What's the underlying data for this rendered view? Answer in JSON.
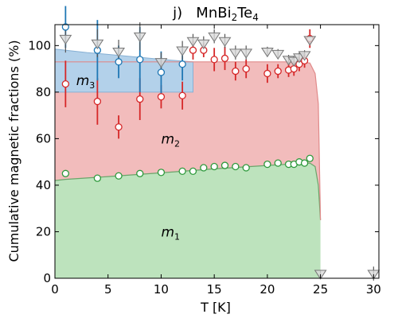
{
  "chart_data": {
    "type": "area",
    "title": {
      "prefix": "j)",
      "formula_parts": [
        "MnBi",
        "2",
        "Te",
        "4"
      ]
    },
    "xlabel": "T [K]",
    "ylabel": "Cumulative magnetic fractions (%)",
    "xlim": [
      0,
      30.5
    ],
    "ylim": [
      0,
      109
    ],
    "xticks": [
      0,
      5,
      10,
      15,
      20,
      25,
      30
    ],
    "yticks": [
      0,
      20,
      40,
      60,
      80,
      100
    ],
    "grid": false,
    "colors": {
      "m1_fill": "#bde3bd",
      "m1_edge": "#6aa56a",
      "m2_fill": "#f2bcbc",
      "m2_edge": "#e08a8a",
      "m3_fill": "#b3d1ea",
      "m3_edge": "#86b0d4",
      "m1_marker": "#2e9a3c",
      "m2_marker": "#d62728",
      "m3_marker": "#1f77b4",
      "total_marker": "#999999"
    },
    "region_labels": [
      {
        "base": "m",
        "sub": "1",
        "x": 10,
        "y": 20
      },
      {
        "base": "m",
        "sub": "2",
        "x": 10,
        "y": 60
      },
      {
        "base": "m",
        "sub": "3",
        "x": 2,
        "y": 85
      }
    ],
    "bands": {
      "m1_curve": [
        [
          0,
          42
        ],
        [
          1,
          42.5
        ],
        [
          5,
          43.7
        ],
        [
          10,
          45.3
        ],
        [
          15,
          47
        ],
        [
          20,
          48.5
        ],
        [
          23,
          49.3
        ],
        [
          24,
          49.5
        ],
        [
          24.5,
          48
        ],
        [
          24.8,
          40
        ],
        [
          25,
          25
        ]
      ],
      "m2_curve": [
        [
          0,
          93
        ],
        [
          5,
          93
        ],
        [
          10,
          93
        ],
        [
          15,
          93
        ],
        [
          20,
          93
        ],
        [
          23,
          93
        ],
        [
          24,
          92.5
        ],
        [
          24.5,
          88
        ],
        [
          24.8,
          75
        ],
        [
          25,
          25
        ]
      ],
      "m3_upper": [
        [
          0,
          98.5
        ],
        [
          3,
          97
        ],
        [
          6,
          95.8
        ],
        [
          9,
          94.5
        ],
        [
          11,
          93.7
        ],
        [
          13,
          93
        ]
      ],
      "m3_lower": [
        [
          0,
          80
        ],
        [
          13,
          80
        ],
        [
          13,
          93
        ]
      ]
    },
    "series": [
      {
        "key": "m1",
        "marker": "circle",
        "points": [
          [
            1,
            45
          ],
          [
            4,
            43
          ],
          [
            6,
            44
          ],
          [
            8,
            45
          ],
          [
            10,
            45.5
          ],
          [
            12,
            46
          ],
          [
            13,
            46
          ],
          [
            14,
            47.5
          ],
          [
            15,
            48
          ],
          [
            16,
            48.5
          ],
          [
            17,
            48
          ],
          [
            18,
            47.5
          ],
          [
            20,
            49
          ],
          [
            21,
            49.5
          ],
          [
            22,
            49
          ],
          [
            22.5,
            49
          ],
          [
            23,
            50
          ],
          [
            23.5,
            49.5
          ],
          [
            24,
            51.5
          ]
        ]
      },
      {
        "key": "m2",
        "marker": "circle",
        "points": [
          [
            1,
            83.5,
            10
          ],
          [
            4,
            76,
            10
          ],
          [
            6,
            65,
            5
          ],
          [
            8,
            77,
            9
          ],
          [
            10,
            78,
            5
          ],
          [
            12,
            78.5,
            6
          ],
          [
            13,
            98,
            4
          ],
          [
            14,
            98,
            3
          ],
          [
            15,
            94,
            5
          ],
          [
            16,
            94.5,
            5
          ],
          [
            17,
            89,
            4
          ],
          [
            18,
            90,
            4
          ],
          [
            20,
            88,
            4
          ],
          [
            21,
            89,
            3
          ],
          [
            22,
            89.5,
            3
          ],
          [
            22.5,
            90,
            3
          ],
          [
            23,
            92,
            3
          ],
          [
            23.5,
            93.5,
            3
          ],
          [
            24,
            103,
            4
          ]
        ]
      },
      {
        "key": "m3",
        "marker": "circle",
        "points": [
          [
            1,
            108,
            9
          ],
          [
            4,
            98,
            13
          ],
          [
            6,
            93,
            7
          ],
          [
            8,
            94,
            14
          ],
          [
            10,
            88.5,
            9
          ],
          [
            12,
            92,
            7
          ]
        ]
      },
      {
        "key": "total",
        "marker": "triangle-down",
        "points": [
          [
            1,
            103,
            6
          ],
          [
            4,
            101,
            6
          ],
          [
            6,
            97.5,
            5
          ],
          [
            8,
            104,
            6
          ],
          [
            10,
            93,
            4
          ],
          [
            12,
            98,
            4
          ],
          [
            13,
            102,
            3
          ],
          [
            14,
            101,
            3
          ],
          [
            15,
            104,
            3
          ],
          [
            16,
            102,
            3
          ],
          [
            17,
            97,
            3
          ],
          [
            18,
            97,
            3
          ],
          [
            20,
            97.5,
            2
          ],
          [
            21,
            96.5,
            2
          ],
          [
            22,
            94,
            2
          ],
          [
            22.5,
            93.5,
            2
          ],
          [
            23,
            95,
            2
          ],
          [
            23.5,
            96,
            2
          ],
          [
            24,
            102.5,
            2
          ],
          [
            25,
            2,
            1.5
          ],
          [
            30,
            2,
            3
          ]
        ]
      }
    ]
  }
}
